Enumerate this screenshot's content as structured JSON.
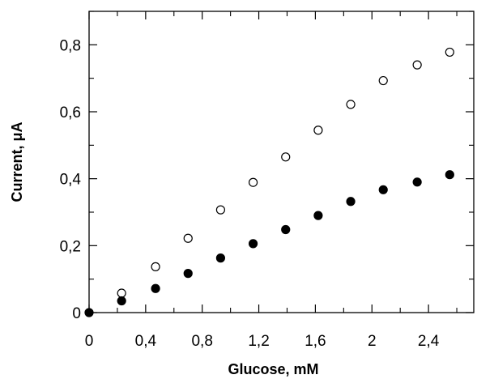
{
  "chart_data": {
    "type": "scatter",
    "title": "",
    "xlabel": "Glucose, mM",
    "ylabel": "Current, μA",
    "xlim": [
      0,
      2.72
    ],
    "ylim": [
      0,
      0.9
    ],
    "grid": false,
    "legend": "none",
    "x_ticks": [
      {
        "value": 0,
        "label": "0"
      },
      {
        "value": 0.4,
        "label": "0,4"
      },
      {
        "value": 0.8,
        "label": "0,8"
      },
      {
        "value": 1.2,
        "label": "1,2"
      },
      {
        "value": 1.6,
        "label": "1,6"
      },
      {
        "value": 2.0,
        "label": "2"
      },
      {
        "value": 2.4,
        "label": "2,4"
      }
    ],
    "y_ticks": [
      {
        "value": 0,
        "label": "0"
      },
      {
        "value": 0.2,
        "label": "0,2"
      },
      {
        "value": 0.4,
        "label": "0,4"
      },
      {
        "value": 0.6,
        "label": "0,6"
      },
      {
        "value": 0.8,
        "label": "0,8"
      }
    ],
    "series": [
      {
        "marker": "open-circle",
        "color": "#000000",
        "x": [
          0.23,
          0.47,
          0.7,
          0.93,
          1.16,
          1.39,
          1.62,
          1.85,
          2.08,
          2.32,
          2.55
        ],
        "y": [
          0.058,
          0.137,
          0.222,
          0.307,
          0.389,
          0.465,
          0.545,
          0.622,
          0.693,
          0.74,
          0.778
        ]
      },
      {
        "marker": "filled-circle",
        "color": "#000000",
        "x": [
          0.0,
          0.23,
          0.47,
          0.7,
          0.93,
          1.16,
          1.39,
          1.62,
          1.85,
          2.08,
          2.32,
          2.55
        ],
        "y": [
          0.0,
          0.035,
          0.072,
          0.117,
          0.163,
          0.206,
          0.248,
          0.29,
          0.332,
          0.367,
          0.39,
          0.412
        ]
      }
    ]
  }
}
